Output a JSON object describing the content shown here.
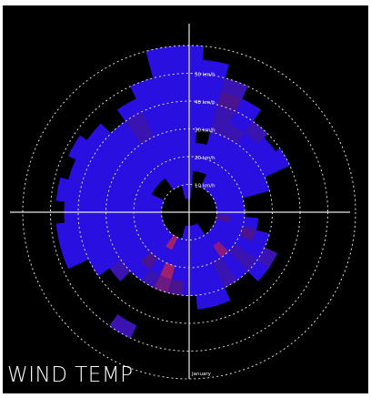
{
  "caption": "WIND TEMP",
  "chart_data": {
    "type": "polar-bar",
    "radial_axis": {
      "unit": "km/h",
      "ring_values": [
        10,
        20,
        30,
        40,
        50,
        60
      ],
      "tick_labels": [
        "10 km/h",
        "20 km/h",
        "30 km/h",
        "40 km/h",
        "50 km/h"
      ]
    },
    "angle_labels": [
      "January"
    ],
    "bin_width_deg": 10,
    "speed_band": 5,
    "sectors": [
      {
        "bearing": 0,
        "bands": [
          {
            "from": 5,
            "to": 60,
            "color": "#2a10e0"
          }
        ]
      },
      {
        "bearing": 10,
        "bands": [
          {
            "from": 15,
            "to": 25,
            "color": "#2a10e0"
          },
          {
            "from": 30,
            "to": 55,
            "color": "#2a10e0"
          }
        ]
      },
      {
        "bearing": 20,
        "bands": [
          {
            "from": 15,
            "to": 30,
            "color": "#2a10e0"
          },
          {
            "from": 30,
            "to": 40,
            "color": "#3a14b0"
          },
          {
            "from": 40,
            "to": 45,
            "color": "#4a1490"
          },
          {
            "from": 45,
            "to": 50,
            "color": "#3a14b0"
          }
        ]
      },
      {
        "bearing": 30,
        "bands": [
          {
            "from": 10,
            "to": 30,
            "color": "#2a10e0"
          },
          {
            "from": 30,
            "to": 35,
            "color": "#3a14b0"
          },
          {
            "from": 35,
            "to": 45,
            "color": "#2a10e0"
          }
        ]
      },
      {
        "bearing": 40,
        "bands": [
          {
            "from": 10,
            "to": 35,
            "color": "#2a10e0"
          },
          {
            "from": 35,
            "to": 40,
            "color": "#3a14b0"
          }
        ]
      },
      {
        "bearing": 50,
        "bands": [
          {
            "from": 10,
            "to": 38,
            "color": "#2a10e0"
          }
        ]
      },
      {
        "bearing": 60,
        "bands": [
          {
            "from": 10,
            "to": 30,
            "color": "#2a10e0"
          },
          {
            "from": 30,
            "to": 40,
            "color": "#2a10e0"
          }
        ]
      },
      {
        "bearing": 70,
        "bands": [
          {
            "from": 10,
            "to": 20,
            "color": "#2a10e0"
          },
          {
            "from": 20,
            "to": 30,
            "color": "#2a10e0"
          }
        ]
      },
      {
        "bearing": 80,
        "bands": [
          {
            "from": 10,
            "to": 20,
            "color": "#2a10e0"
          }
        ]
      },
      {
        "bearing": 90,
        "bands": [
          {
            "from": 10,
            "to": 20,
            "color": "#2a10e0"
          }
        ]
      },
      {
        "bearing": 100,
        "bands": [
          {
            "from": 10,
            "to": 15,
            "color": "#4a1490"
          },
          {
            "from": 15,
            "to": 25,
            "color": "#2a10e0"
          }
        ]
      },
      {
        "bearing": 110,
        "bands": [
          {
            "from": 10,
            "to": 20,
            "color": "#2a10e0"
          },
          {
            "from": 20,
            "to": 25,
            "color": "#4a1490"
          },
          {
            "from": 25,
            "to": 30,
            "color": "#2a10e0"
          }
        ]
      },
      {
        "bearing": 120,
        "bands": [
          {
            "from": 10,
            "to": 25,
            "color": "#2a10e0"
          },
          {
            "from": 25,
            "to": 30,
            "color": "#2a10e0"
          },
          {
            "from": 30,
            "to": 35,
            "color": "#3a14b0"
          }
        ]
      },
      {
        "bearing": 130,
        "bands": [
          {
            "from": 10,
            "to": 20,
            "color": "#2a10e0"
          },
          {
            "from": 20,
            "to": 30,
            "color": "#3a14b0"
          },
          {
            "from": 30,
            "to": 35,
            "color": "#2a10e0"
          }
        ]
      },
      {
        "bearing": 140,
        "bands": [
          {
            "from": 10,
            "to": 15,
            "color": "#2a10e0"
          },
          {
            "from": 15,
            "to": 20,
            "color": "#8a1a80"
          },
          {
            "from": 20,
            "to": 30,
            "color": "#2a10e0"
          }
        ]
      },
      {
        "bearing": 150,
        "bands": [
          {
            "from": 5,
            "to": 20,
            "color": "#2a10e0"
          },
          {
            "from": 20,
            "to": 30,
            "color": "#3a14b0"
          }
        ]
      },
      {
        "bearing": 160,
        "bands": [
          {
            "from": 5,
            "to": 25,
            "color": "#2a10e0"
          },
          {
            "from": 25,
            "to": 35,
            "color": "#2a10e0"
          }
        ]
      },
      {
        "bearing": 170,
        "bands": [
          {
            "from": 5,
            "to": 35,
            "color": "#2a10e0"
          }
        ]
      },
      {
        "bearing": 180,
        "bands": [
          {
            "from": 5,
            "to": 30,
            "color": "#2a10e0"
          }
        ]
      },
      {
        "bearing": 190,
        "bands": [
          {
            "from": 5,
            "to": 25,
            "color": "#2a10e0"
          },
          {
            "from": 25,
            "to": 30,
            "color": "#4a1490"
          }
        ]
      },
      {
        "bearing": 200,
        "bands": [
          {
            "from": 10,
            "to": 20,
            "color": "#2a10e0"
          },
          {
            "from": 20,
            "to": 25,
            "color": "#a0206e"
          },
          {
            "from": 25,
            "to": 30,
            "color": "#6a1a80"
          }
        ]
      },
      {
        "bearing": 210,
        "bands": [
          {
            "from": 10,
            "to": 15,
            "color": "#a0206e"
          },
          {
            "from": 15,
            "to": 25,
            "color": "#2a10e0"
          },
          {
            "from": 25,
            "to": 30,
            "color": "#3a14b0"
          },
          {
            "from": 45,
            "to": 50,
            "color": "#3a14b0"
          }
        ]
      },
      {
        "bearing": 220,
        "bands": [
          {
            "from": 10,
            "to": 20,
            "color": "#2a10e0"
          },
          {
            "from": 20,
            "to": 25,
            "color": "#4a1490"
          },
          {
            "from": 25,
            "to": 30,
            "color": "#2a10e0"
          }
        ]
      },
      {
        "bearing": 230,
        "bands": [
          {
            "from": 10,
            "to": 30,
            "color": "#2a10e0"
          },
          {
            "from": 30,
            "to": 35,
            "color": "#3a14b0"
          }
        ]
      },
      {
        "bearing": 240,
        "bands": [
          {
            "from": 10,
            "to": 35,
            "color": "#2a10e0"
          },
          {
            "from": 35,
            "to": 40,
            "color": "#2a10e0"
          }
        ]
      },
      {
        "bearing": 250,
        "bands": [
          {
            "from": 10,
            "to": 40,
            "color": "#2a10e0"
          },
          {
            "from": 40,
            "to": 48,
            "color": "#2a10e0"
          }
        ]
      },
      {
        "bearing": 260,
        "bands": [
          {
            "from": 10,
            "to": 48,
            "color": "#2a10e0"
          }
        ]
      },
      {
        "bearing": 270,
        "bands": [
          {
            "from": 10,
            "to": 45,
            "color": "#2a10e0"
          }
        ]
      },
      {
        "bearing": 280,
        "bands": [
          {
            "from": 10,
            "to": 48,
            "color": "#2a10e0"
          }
        ]
      },
      {
        "bearing": 290,
        "bands": [
          {
            "from": 10,
            "to": 45,
            "color": "#2a10e0"
          }
        ]
      },
      {
        "bearing": 300,
        "bands": [
          {
            "from": 15,
            "to": 48,
            "color": "#2a10e0"
          }
        ]
      },
      {
        "bearing": 310,
        "bands": [
          {
            "from": 15,
            "to": 35,
            "color": "#2a10e0"
          },
          {
            "from": 35,
            "to": 45,
            "color": "#2a10e0"
          }
        ]
      },
      {
        "bearing": 320,
        "bands": [
          {
            "from": 15,
            "to": 30,
            "color": "#2a10e0"
          },
          {
            "from": 30,
            "to": 40,
            "color": "#2a10e0"
          }
        ]
      },
      {
        "bearing": 330,
        "bands": [
          {
            "from": 10,
            "to": 30,
            "color": "#2a10e0"
          },
          {
            "from": 30,
            "to": 40,
            "color": "#3a14b0"
          },
          {
            "from": 40,
            "to": 45,
            "color": "#2a10e0"
          }
        ]
      },
      {
        "bearing": 340,
        "bands": [
          {
            "from": 10,
            "to": 25,
            "color": "#2a10e0"
          },
          {
            "from": 25,
            "to": 35,
            "color": "#2a10e0"
          },
          {
            "from": 35,
            "to": 50,
            "color": "#2a10e0"
          }
        ]
      },
      {
        "bearing": 350,
        "bands": [
          {
            "from": 5,
            "to": 35,
            "color": "#2a10e0"
          },
          {
            "from": 35,
            "to": 60,
            "color": "#2a10e0"
          }
        ]
      }
    ]
  }
}
